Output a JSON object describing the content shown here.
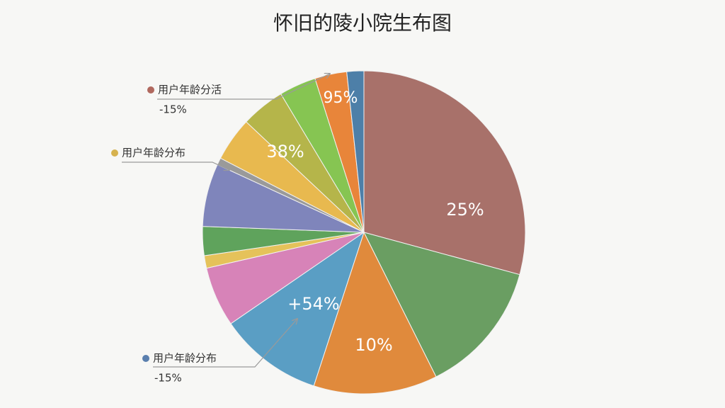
{
  "chart_data": {
    "type": "pie",
    "title": "怀旧的陵小院生布图",
    "values": [
      29.2,
      13.4,
      12.4,
      10.4,
      6.0,
      1.25,
      2.9,
      6.3,
      0.7,
      4.4,
      4.4,
      3.7,
      3.2,
      1.7
    ],
    "colors": [
      "#a8716a",
      "#6a9e62",
      "#e08a3c",
      "#5a9ec4",
      "#d783b8",
      "#e5c25a",
      "#5fa35c",
      "#7f85bb",
      "#9a9a9a",
      "#e8b94f",
      "#b5b54a",
      "#86c552",
      "#e8853a",
      "#4d7fa8"
    ],
    "annotations": [
      {
        "text": "25%"
      },
      {
        "text": "10%"
      },
      {
        "text": "+54%"
      },
      {
        "text": "38%"
      },
      {
        "text": "95%"
      }
    ],
    "callouts": [
      {
        "label": "用户年龄分活",
        "note": "-15%",
        "color": "#b0685e"
      },
      {
        "label": "用户年龄分布",
        "color": "#d6b24e"
      },
      {
        "label": "用户年龄分布",
        "note": "-15%",
        "color": "#5a7fae"
      }
    ]
  }
}
